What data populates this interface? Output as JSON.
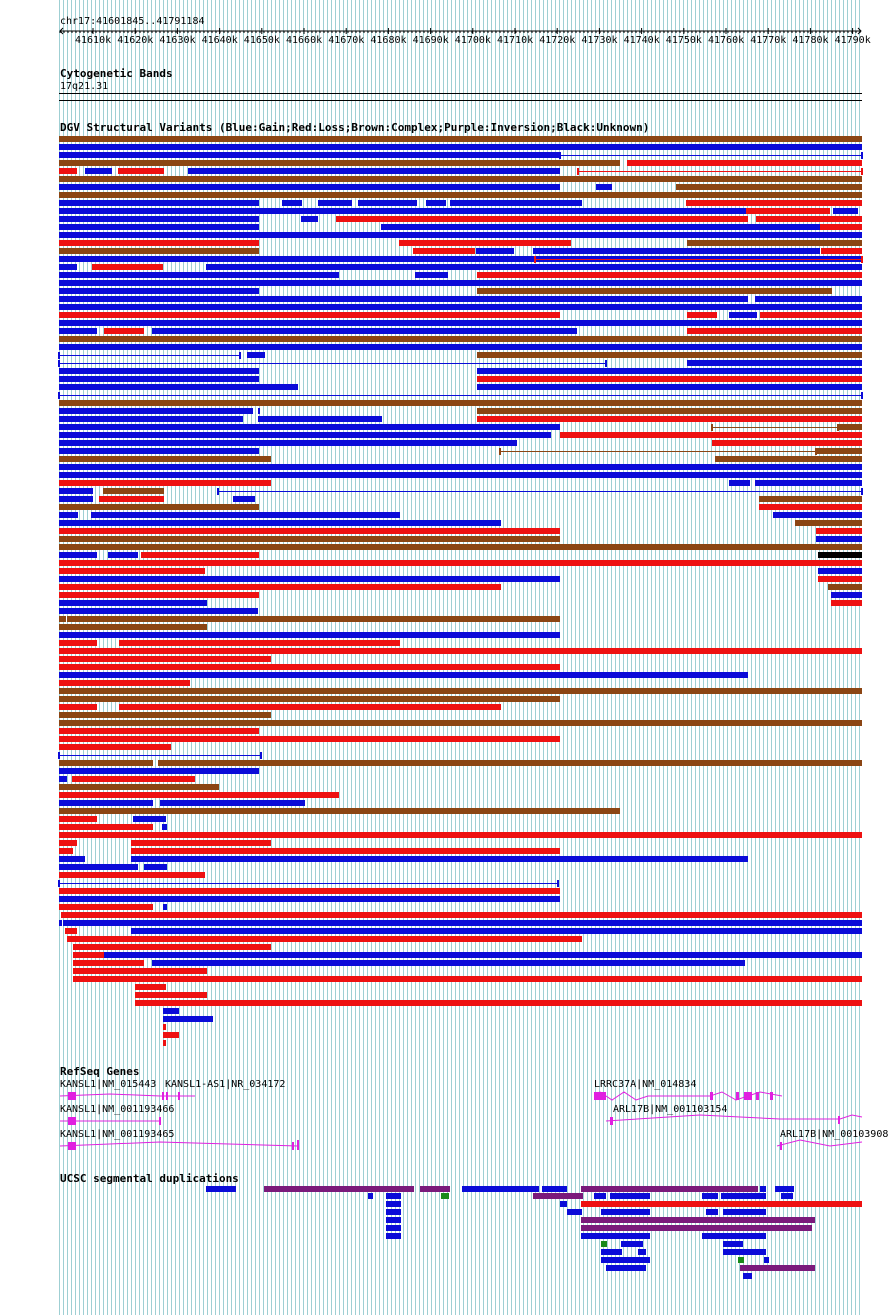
{
  "position_label": "chr17:41601845..41791184",
  "ruler_ticks": [
    "41610k",
    "41620k",
    "41630k",
    "41640k",
    "41650k",
    "41660k",
    "41670k",
    "41680k",
    "41690k",
    "41700k",
    "41710k",
    "41720k",
    "41730k",
    "41740k",
    "41750k",
    "41760k",
    "41770k",
    "41780k",
    "41790k"
  ],
  "tracks": {
    "cytoband": {
      "title": "Cytogenetic Bands",
      "band": "17q21.31"
    },
    "dgv": {
      "title": "DGV Structural Variants (Blue:Gain;Red:Loss;Brown:Complex;Purple:Inversion;Black:Unknown)"
    },
    "refseq": {
      "title": "RefSeq Genes",
      "genes": [
        {
          "label": "KANSL1|NM_015443"
        },
        {
          "label": "KANSL1-AS1|NR_034172"
        },
        {
          "label": "LRRC37A|NM_014834"
        },
        {
          "label": "KANSL1|NM_001193466"
        },
        {
          "label": "ARL17B|NM_001103154"
        },
        {
          "label": "KANSL1|NM_001193465"
        },
        {
          "label": "ARL17B|NM_00103908"
        }
      ]
    },
    "segdup": {
      "title": "UCSC segmental duplications"
    }
  },
  "colors": {
    "gain": "#0b0bd8",
    "loss": "#ee1111",
    "complex": "#8b4513",
    "inversion": "#7b1a7b",
    "unknown": "#000000",
    "gene": "#e020e0",
    "segdup_green": "#1a8a1a",
    "grid": "#9fcfd3"
  }
}
